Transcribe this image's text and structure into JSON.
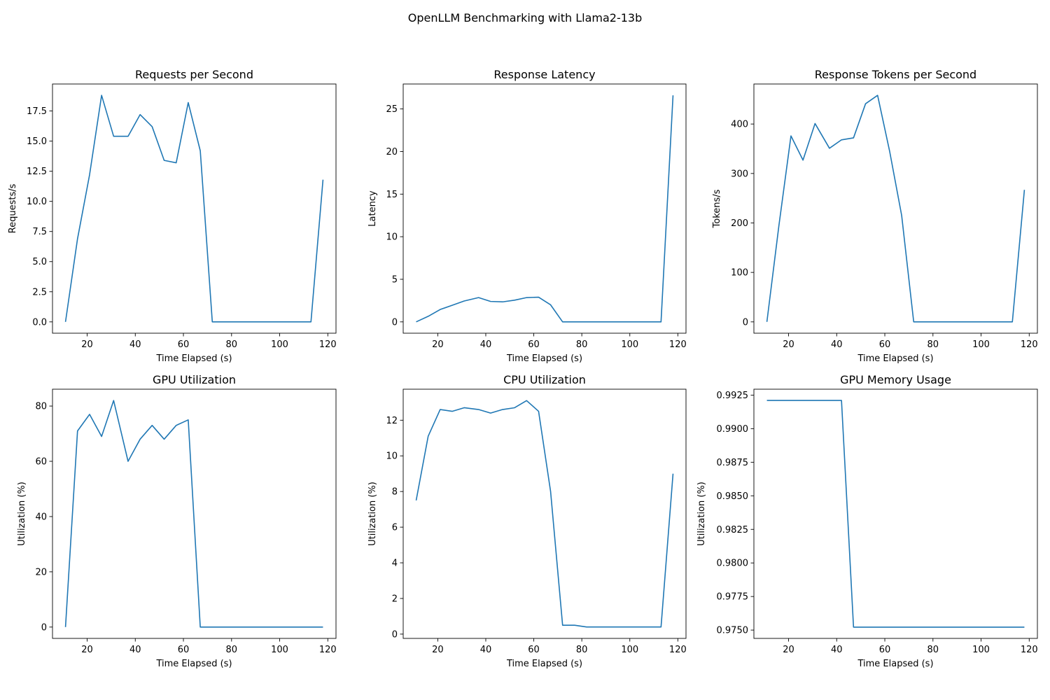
{
  "figure": {
    "suptitle": "OpenLLM Benchmarking with Llama2-13b",
    "line_color": "#1f77b4"
  },
  "chart_data": [
    {
      "type": "line",
      "title": "Requests per Second",
      "xlabel": "Time Elapsed (s)",
      "ylabel": "Requests/s",
      "xlim": [
        5.6,
        123.4
      ],
      "ylim": [
        -0.94,
        19.74
      ],
      "xticks": [
        20,
        40,
        60,
        80,
        100,
        120
      ],
      "yticks": [
        "0.0",
        "2.5",
        "5.0",
        "7.5",
        "10.0",
        "12.5",
        "15.0",
        "17.5"
      ],
      "x": [
        11,
        16,
        21,
        26,
        31,
        37,
        42,
        47,
        52,
        57,
        62,
        67,
        72,
        77,
        82,
        87,
        92,
        97,
        102,
        107,
        113,
        118
      ],
      "values": [
        0,
        6.9,
        12.2,
        18.8,
        15.4,
        15.4,
        17.2,
        16.2,
        13.4,
        13.2,
        18.2,
        14.2,
        0,
        0,
        0,
        0,
        0,
        0,
        0,
        0,
        0,
        11.8
      ]
    },
    {
      "type": "line",
      "title": "Response Latency",
      "xlabel": "Time Elapsed (s)",
      "ylabel": "Latency",
      "xlim": [
        5.6,
        123.4
      ],
      "ylim": [
        -1.33,
        27.93
      ],
      "xticks": [
        20,
        40,
        60,
        80,
        100,
        120
      ],
      "yticks": [
        "0",
        "5",
        "10",
        "15",
        "20",
        "25"
      ],
      "x": [
        11,
        16,
        21,
        26,
        31,
        37,
        42,
        47,
        52,
        57,
        62,
        67,
        72,
        77,
        82,
        87,
        92,
        97,
        102,
        107,
        113,
        118
      ],
      "values": [
        0,
        0.65,
        1.45,
        1.95,
        2.45,
        2.85,
        2.4,
        2.35,
        2.55,
        2.85,
        2.9,
        2.0,
        0,
        0,
        0,
        0,
        0,
        0,
        0,
        0,
        0,
        26.6
      ]
    },
    {
      "type": "line",
      "title": "Response Tokens per Second",
      "xlabel": "Time Elapsed (s)",
      "ylabel": "Tokens/s",
      "xlim": [
        5.6,
        123.4
      ],
      "ylim": [
        -22.9,
        480.9
      ],
      "xticks": [
        20,
        40,
        60,
        80,
        100,
        120
      ],
      "yticks": [
        "0",
        "100",
        "200",
        "300",
        "400"
      ],
      "x": [
        11,
        16,
        21,
        26,
        31,
        37,
        42,
        47,
        52,
        57,
        62,
        67,
        72,
        77,
        82,
        87,
        92,
        97,
        102,
        107,
        113,
        118
      ],
      "values": [
        0,
        195,
        376,
        327,
        401,
        351,
        368,
        372,
        441,
        458,
        345,
        215,
        0,
        0,
        0,
        0,
        0,
        0,
        0,
        0,
        0,
        267
      ]
    },
    {
      "type": "line",
      "title": "GPU Utilization",
      "xlabel": "Time Elapsed (s)",
      "ylabel": "Utilization (%)",
      "xlim": [
        5.6,
        123.4
      ],
      "ylim": [
        -4.1,
        86.1
      ],
      "xticks": [
        20,
        40,
        60,
        80,
        100,
        120
      ],
      "yticks": [
        "0",
        "20",
        "40",
        "60",
        "80"
      ],
      "x": [
        11,
        16,
        21,
        26,
        31,
        37,
        42,
        47,
        52,
        57,
        62,
        67,
        72,
        77,
        82,
        87,
        92,
        97,
        102,
        107,
        113,
        118
      ],
      "values": [
        0,
        71,
        77,
        69,
        82,
        60,
        68,
        73,
        68,
        73,
        75,
        0,
        0,
        0,
        0,
        0,
        0,
        0,
        0,
        0,
        0,
        0
      ]
    },
    {
      "type": "line",
      "title": "CPU Utilization",
      "xlabel": "Time Elapsed (s)",
      "ylabel": "Utilization (%)",
      "xlim": [
        5.6,
        123.4
      ],
      "ylim": [
        -0.24,
        13.74
      ],
      "xticks": [
        20,
        40,
        60,
        80,
        100,
        120
      ],
      "yticks": [
        "0",
        "2",
        "4",
        "6",
        "8",
        "10",
        "12"
      ],
      "x": [
        11,
        16,
        21,
        26,
        31,
        37,
        42,
        47,
        52,
        57,
        62,
        67,
        72,
        77,
        82,
        87,
        92,
        97,
        102,
        107,
        113,
        118
      ],
      "values": [
        7.5,
        11.1,
        12.6,
        12.5,
        12.7,
        12.6,
        12.4,
        12.6,
        12.7,
        13.1,
        12.5,
        8.0,
        0.5,
        0.5,
        0.4,
        0.4,
        0.4,
        0.4,
        0.4,
        0.4,
        0.4,
        9.0
      ]
    },
    {
      "type": "line",
      "title": "GPU Memory Usage",
      "xlabel": "Time Elapsed (s)",
      "ylabel": "Utilization (%)",
      "xlim": [
        5.6,
        123.4
      ],
      "ylim": [
        0.97438,
        0.99294
      ],
      "xticks": [
        20,
        40,
        60,
        80,
        100,
        120
      ],
      "yticks": [
        "0.9750",
        "0.9775",
        "0.9800",
        "0.9825",
        "0.9850",
        "0.9875",
        "0.9900",
        "0.9925"
      ],
      "x": [
        11,
        16,
        21,
        26,
        31,
        37,
        42,
        47,
        52,
        57,
        62,
        67,
        72,
        77,
        82,
        87,
        92,
        97,
        102,
        107,
        113,
        118
      ],
      "values": [
        0.9921,
        0.9921,
        0.9921,
        0.9921,
        0.9921,
        0.9921,
        0.9921,
        0.97522,
        0.97522,
        0.97522,
        0.97522,
        0.97522,
        0.97522,
        0.97522,
        0.97522,
        0.97522,
        0.97522,
        0.97522,
        0.97522,
        0.97522,
        0.97522,
        0.97522
      ]
    }
  ]
}
